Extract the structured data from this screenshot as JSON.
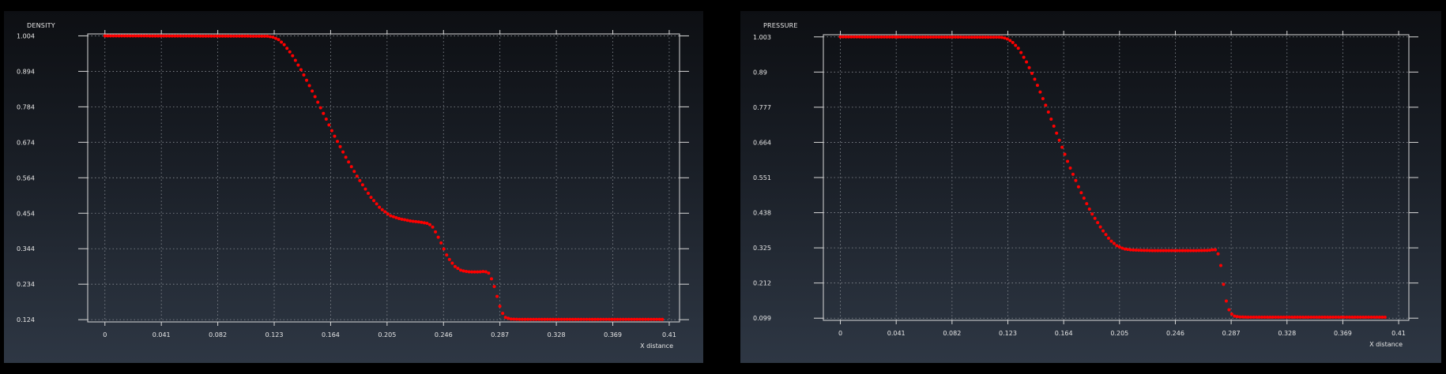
{
  "colors": {
    "frame": "#d8d8d8",
    "grid": "#8a8f96",
    "text": "#e6e6e6",
    "marker": "#ff0000"
  },
  "chart_data": [
    {
      "type": "scatter",
      "title": "DENSITY",
      "xlabel": "X distance",
      "ylabel": "",
      "grid": true,
      "xlim": [
        -0.0125,
        0.4175
      ],
      "ylim": [
        0.117,
        1.01
      ],
      "x_ticks": [
        0,
        0.041,
        0.082,
        0.123,
        0.164,
        0.205,
        0.246,
        0.287,
        0.328,
        0.369,
        0.41
      ],
      "x_tick_labels": [
        "0",
        "0.041",
        "0.082",
        "0.123",
        "0.164",
        "0.205",
        "0.246",
        "0.287",
        "0.328",
        "0.369",
        "0.41"
      ],
      "y_ticks": [
        0.124,
        0.234,
        0.344,
        0.454,
        0.564,
        0.674,
        0.784,
        0.894,
        1.004
      ],
      "y_tick_labels": [
        "0.124",
        "0.234",
        "0.344",
        "0.454",
        "0.564",
        "0.674",
        "0.784",
        "0.894",
        "1.004"
      ],
      "series": [
        {
          "curve": [
            [
              0,
              1.004
            ],
            [
              0.118,
              1.003
            ],
            [
              0.122,
              1.0
            ],
            [
              0.126,
              0.993
            ],
            [
              0.13,
              0.978
            ],
            [
              0.136,
              0.945
            ],
            [
              0.143,
              0.895
            ],
            [
              0.15,
              0.838
            ],
            [
              0.158,
              0.77
            ],
            [
              0.166,
              0.7
            ],
            [
              0.175,
              0.628
            ],
            [
              0.184,
              0.563
            ],
            [
              0.193,
              0.505
            ],
            [
              0.2,
              0.47
            ],
            [
              0.207,
              0.447
            ],
            [
              0.214,
              0.437
            ],
            [
              0.222,
              0.43
            ],
            [
              0.23,
              0.426
            ],
            [
              0.235,
              0.422
            ],
            [
              0.238,
              0.412
            ],
            [
              0.241,
              0.39
            ],
            [
              0.245,
              0.355
            ],
            [
              0.249,
              0.318
            ],
            [
              0.254,
              0.29
            ],
            [
              0.259,
              0.276
            ],
            [
              0.265,
              0.272
            ],
            [
              0.272,
              0.272
            ],
            [
              0.276,
              0.274
            ],
            [
              0.279,
              0.268
            ],
            [
              0.282,
              0.24
            ],
            [
              0.285,
              0.195
            ],
            [
              0.288,
              0.15
            ],
            [
              0.291,
              0.131
            ],
            [
              0.295,
              0.126
            ],
            [
              0.3,
              0.125
            ],
            [
              0.405,
              0.125
            ]
          ],
          "x_start": 0,
          "x_end": 0.405,
          "n_points": 200
        }
      ]
    },
    {
      "type": "scatter",
      "title": "PRESSURE",
      "xlabel": "X distance",
      "ylabel": "",
      "grid": true,
      "xlim": [
        -0.0125,
        0.4175
      ],
      "ylim": [
        0.092,
        1.01
      ],
      "x_ticks": [
        0,
        0.041,
        0.082,
        0.123,
        0.164,
        0.205,
        0.246,
        0.287,
        0.328,
        0.369,
        0.41
      ],
      "x_tick_labels": [
        "0",
        "0.041",
        "0.082",
        "0.123",
        "0.164",
        "0.205",
        "0.246",
        "0.287",
        "0.328",
        "0.369",
        "0.41"
      ],
      "y_ticks": [
        0.099,
        0.212,
        0.325,
        0.438,
        0.551,
        0.664,
        0.777,
        0.89,
        1.003
      ],
      "y_tick_labels": [
        "0.099",
        "0.212",
        "0.325",
        "0.438",
        "0.551",
        "0.664",
        "0.777",
        "0.89",
        "1.003"
      ],
      "series": [
        {
          "curve": [
            [
              0,
              1.003
            ],
            [
              0.118,
              1.002
            ],
            [
              0.122,
              0.998
            ],
            [
              0.126,
              0.988
            ],
            [
              0.131,
              0.965
            ],
            [
              0.137,
              0.92
            ],
            [
              0.144,
              0.855
            ],
            [
              0.152,
              0.77
            ],
            [
              0.16,
              0.68
            ],
            [
              0.168,
              0.59
            ],
            [
              0.176,
              0.51
            ],
            [
              0.184,
              0.44
            ],
            [
              0.192,
              0.385
            ],
            [
              0.198,
              0.35
            ],
            [
              0.203,
              0.332
            ],
            [
              0.208,
              0.322
            ],
            [
              0.214,
              0.318
            ],
            [
              0.23,
              0.316
            ],
            [
              0.26,
              0.316
            ],
            [
              0.271,
              0.317
            ],
            [
              0.275,
              0.32
            ],
            [
              0.277,
              0.312
            ],
            [
              0.279,
              0.28
            ],
            [
              0.281,
              0.22
            ],
            [
              0.283,
              0.16
            ],
            [
              0.286,
              0.118
            ],
            [
              0.289,
              0.106
            ],
            [
              0.293,
              0.103
            ],
            [
              0.3,
              0.102
            ],
            [
              0.4,
              0.102
            ]
          ],
          "x_start": 0,
          "x_end": 0.4,
          "n_points": 200
        }
      ]
    }
  ]
}
